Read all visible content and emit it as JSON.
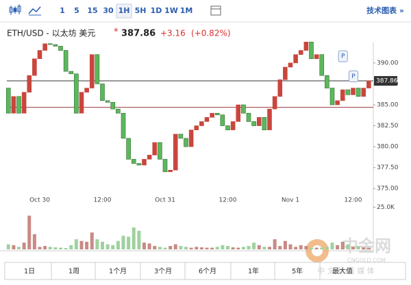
{
  "toolbar": {
    "intervals": [
      "1",
      "5",
      "15",
      "30",
      "1H",
      "5H",
      "1D",
      "1W",
      "1M"
    ],
    "active": "1H",
    "link": "技术图表 »"
  },
  "header": {
    "symbol": "ETH/USD - 以太坊 美元",
    "star": "*",
    "price": "387.86",
    "change": "+3.16",
    "change_pct": "(+0.82%)"
  },
  "chart_data": {
    "type": "candlestick",
    "categories": [
      null,
      null,
      null,
      null,
      null,
      null,
      "Oct 30",
      null,
      null,
      null,
      null,
      null,
      null,
      null,
      null,
      null,
      null,
      null,
      "12:00",
      null,
      null,
      null,
      null,
      null,
      null,
      null,
      null,
      null,
      null,
      null,
      "Oct 31",
      null,
      null,
      null,
      null,
      null,
      null,
      null,
      null,
      null,
      null,
      null,
      "12:00",
      null,
      null,
      null,
      null,
      null,
      null,
      null,
      null,
      null,
      null,
      null,
      "Nov 1",
      null,
      null,
      null,
      null,
      null,
      null,
      null,
      null,
      null,
      null,
      null,
      "12:00",
      null,
      null,
      null
    ],
    "open": [
      387,
      384,
      386,
      384,
      386.5,
      388.5,
      390.5,
      391.5,
      392.3,
      392.2,
      392,
      391.5,
      389,
      388.7,
      384,
      386.5,
      387,
      391,
      387.5,
      385.5,
      385.3,
      384.5,
      384,
      381,
      378.5,
      378,
      377.8,
      378.5,
      379,
      380.5,
      378.5,
      377,
      377.2,
      381.5,
      381,
      380,
      382,
      382.5,
      383,
      383.5,
      384,
      383.8,
      382.5,
      382,
      383,
      385,
      384,
      383,
      382.5,
      383.5,
      382,
      384.5,
      386,
      388,
      389.5,
      390,
      391,
      391.5,
      392.5,
      390.5,
      391,
      388.5,
      387,
      385,
      385.5,
      386.8,
      386.2,
      387,
      386,
      387
    ],
    "close": [
      384,
      386,
      384,
      386.5,
      388.5,
      390.5,
      391.5,
      392.3,
      392.2,
      392,
      391.5,
      389,
      388.7,
      384,
      386.5,
      387,
      391,
      387.5,
      385.5,
      385.3,
      384.5,
      384,
      381,
      378.5,
      378,
      377.8,
      378.5,
      379,
      380.5,
      378.5,
      377,
      377.2,
      381.5,
      381,
      380,
      382,
      382.5,
      383,
      383.5,
      384,
      383.8,
      382.5,
      382,
      383,
      385,
      384,
      383,
      382.5,
      383.5,
      382,
      384.5,
      386,
      388,
      389.5,
      390,
      391,
      391.5,
      392.5,
      390.5,
      391,
      388.5,
      387,
      385,
      385.5,
      386.8,
      386.2,
      387,
      386,
      387,
      387.86
    ],
    "volume": [
      3000,
      2500,
      1500,
      4000,
      20000,
      9000,
      1500,
      2000,
      1500,
      1200,
      1000,
      800,
      2500,
      6000,
      5000,
      4500,
      10000,
      6000,
      4500,
      3000,
      2500,
      5000,
      8000,
      7500,
      13000,
      11000,
      4000,
      3500,
      2000,
      1500,
      1000,
      2000,
      3000,
      2000,
      1500,
      1000,
      1500,
      1200,
      1000,
      1000,
      1500,
      2500,
      2000,
      1200,
      1000,
      1500,
      2000,
      4000,
      2500,
      1500,
      1500,
      6000,
      2000,
      5000,
      3000,
      1500,
      2500,
      2000,
      1000,
      1000,
      1000,
      1500,
      4000,
      2500,
      4500,
      3000,
      1500,
      2000,
      1200,
      1000
    ],
    "up_color": "#c9463d",
    "down_color": "#5cb85c",
    "ylim": [
      374.2,
      392.2
    ],
    "yticks": [
      {
        "value": 390,
        "label": "390.00"
      },
      {
        "value": 387.5,
        "label": "387.50"
      },
      {
        "value": 385,
        "label": "385.00"
      },
      {
        "value": 382.5,
        "label": "382.50"
      },
      {
        "value": 380,
        "label": "380.00"
      },
      {
        "value": 377.5,
        "label": "377.50"
      },
      {
        "value": 375,
        "label": "375.00"
      }
    ],
    "volume_ylim": [
      0,
      28000
    ],
    "volume_yticks": [
      {
        "value": 25000,
        "label": "25.0K"
      }
    ],
    "last_price": {
      "value": 387.86,
      "label": "387.86"
    },
    "prev_close": 384.7,
    "annotations": [
      {
        "text": "P",
        "index": 64,
        "value": 390.8
      },
      {
        "text": "P",
        "index": 66,
        "value": 388.4
      }
    ]
  },
  "range_buttons": [
    "1日",
    "1周",
    "1个月",
    "3个月",
    "6个月",
    "1年",
    "5年",
    "最大值"
  ],
  "watermark": {
    "name": "中金网",
    "site": "CNGOLD.COM",
    "slogan": "中 文 财 新 媒 体"
  }
}
